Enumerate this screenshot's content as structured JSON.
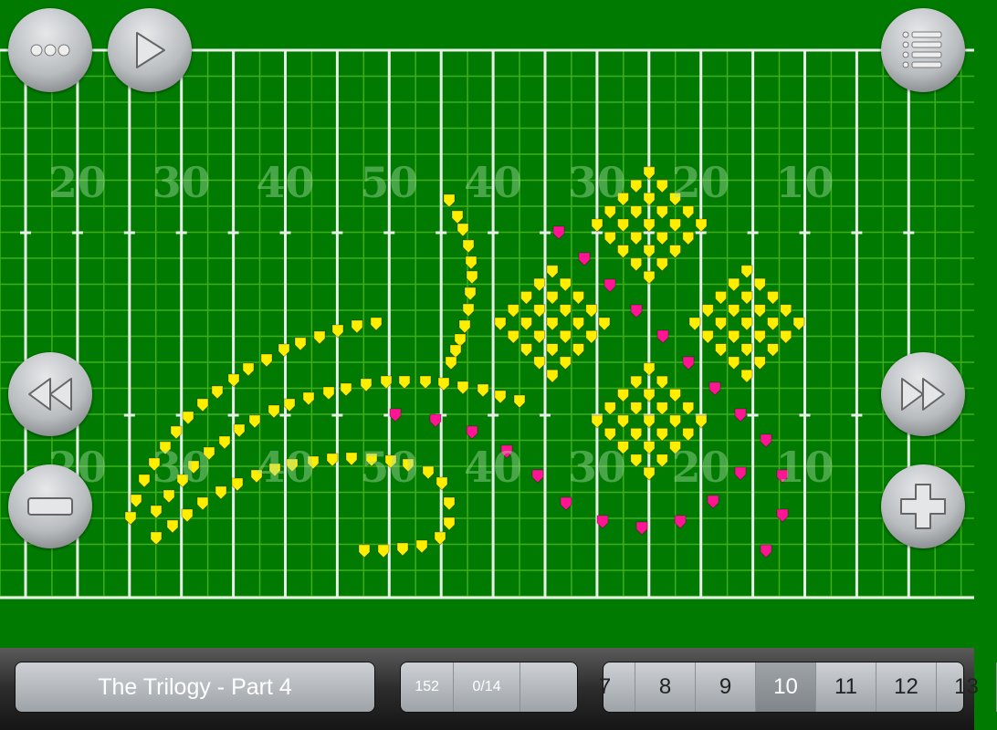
{
  "field": {
    "top_numbers": [
      "20",
      "30",
      "40",
      "50",
      "40",
      "30",
      "20",
      "10"
    ],
    "bottom_numbers": [
      "20",
      "30",
      "40",
      "50",
      "40",
      "30",
      "20",
      "10"
    ],
    "colors": {
      "turf": "#007a00",
      "grid": "#3fae1a",
      "lines": "#e8efe8",
      "numbers": "#5fb35f",
      "performer": "#ffee00",
      "highlight": "#ff1493"
    }
  },
  "buttons": {
    "more": "more-icon",
    "play": "play-icon",
    "list": "list-icon",
    "rewind": "rewind-icon",
    "forward": "fast-forward-icon",
    "zoom_out": "minus-icon",
    "zoom_in": "plus-icon"
  },
  "bottom": {
    "title": "The Trilogy - Part 4",
    "count": "152",
    "set_progress": "0/14",
    "pages": [
      "7",
      "8",
      "9",
      "10",
      "11",
      "12",
      "13"
    ],
    "selected_page": "10"
  }
}
